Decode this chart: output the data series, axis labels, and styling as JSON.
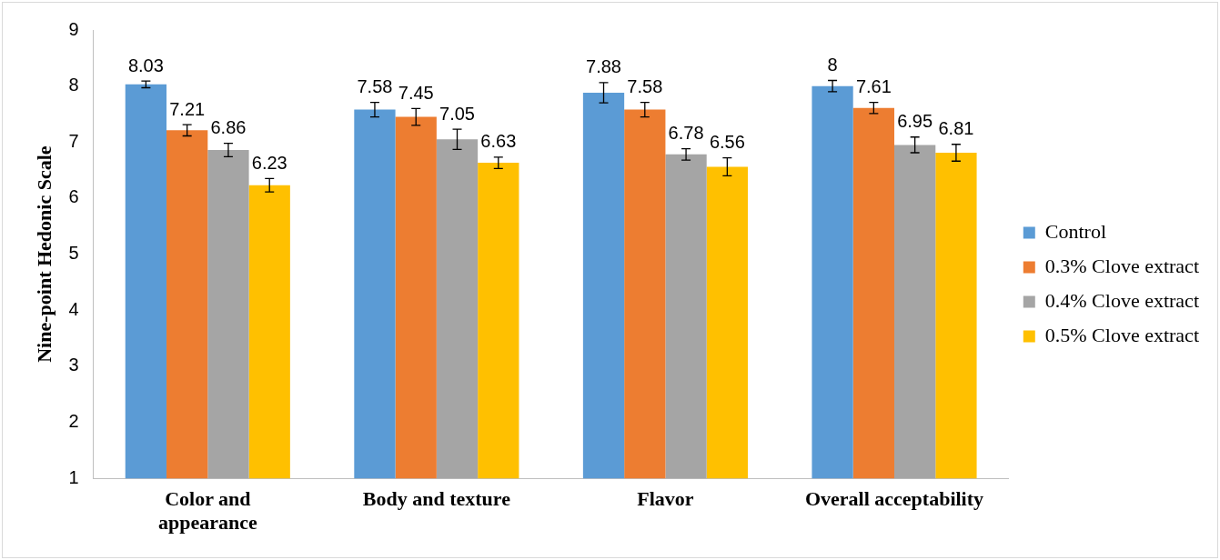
{
  "chart_data": {
    "type": "bar",
    "ylabel": "Nine-point Hedonic Scale",
    "categories": [
      "Color and\nappearance",
      "Body and texture",
      "Flavor",
      "Overall acceptability"
    ],
    "series": [
      {
        "name": "Control",
        "color": "#5b9bd5",
        "values": [
          8.03,
          7.58,
          7.88,
          8
        ],
        "errors": [
          0.06,
          0.13,
          0.18,
          0.1
        ]
      },
      {
        "name": "0.3% Clove extract",
        "color": "#ed7d31",
        "values": [
          7.21,
          7.45,
          7.58,
          7.61
        ],
        "errors": [
          0.1,
          0.15,
          0.13,
          0.1
        ]
      },
      {
        "name": "0.4% Clove extract",
        "color": "#a5a5a5",
        "values": [
          6.86,
          7.05,
          6.78,
          6.95
        ],
        "errors": [
          0.12,
          0.18,
          0.1,
          0.14
        ]
      },
      {
        "name": "0.5% Clove extract",
        "color": "#ffc000",
        "values": [
          6.23,
          6.63,
          6.56,
          6.81
        ],
        "errors": [
          0.12,
          0.1,
          0.16,
          0.15
        ]
      }
    ],
    "ylim": [
      1,
      9
    ],
    "yticks": [
      1,
      2,
      3,
      4,
      5,
      6,
      7,
      8,
      9
    ],
    "grid": false,
    "legend": "right",
    "data_labels": true
  }
}
